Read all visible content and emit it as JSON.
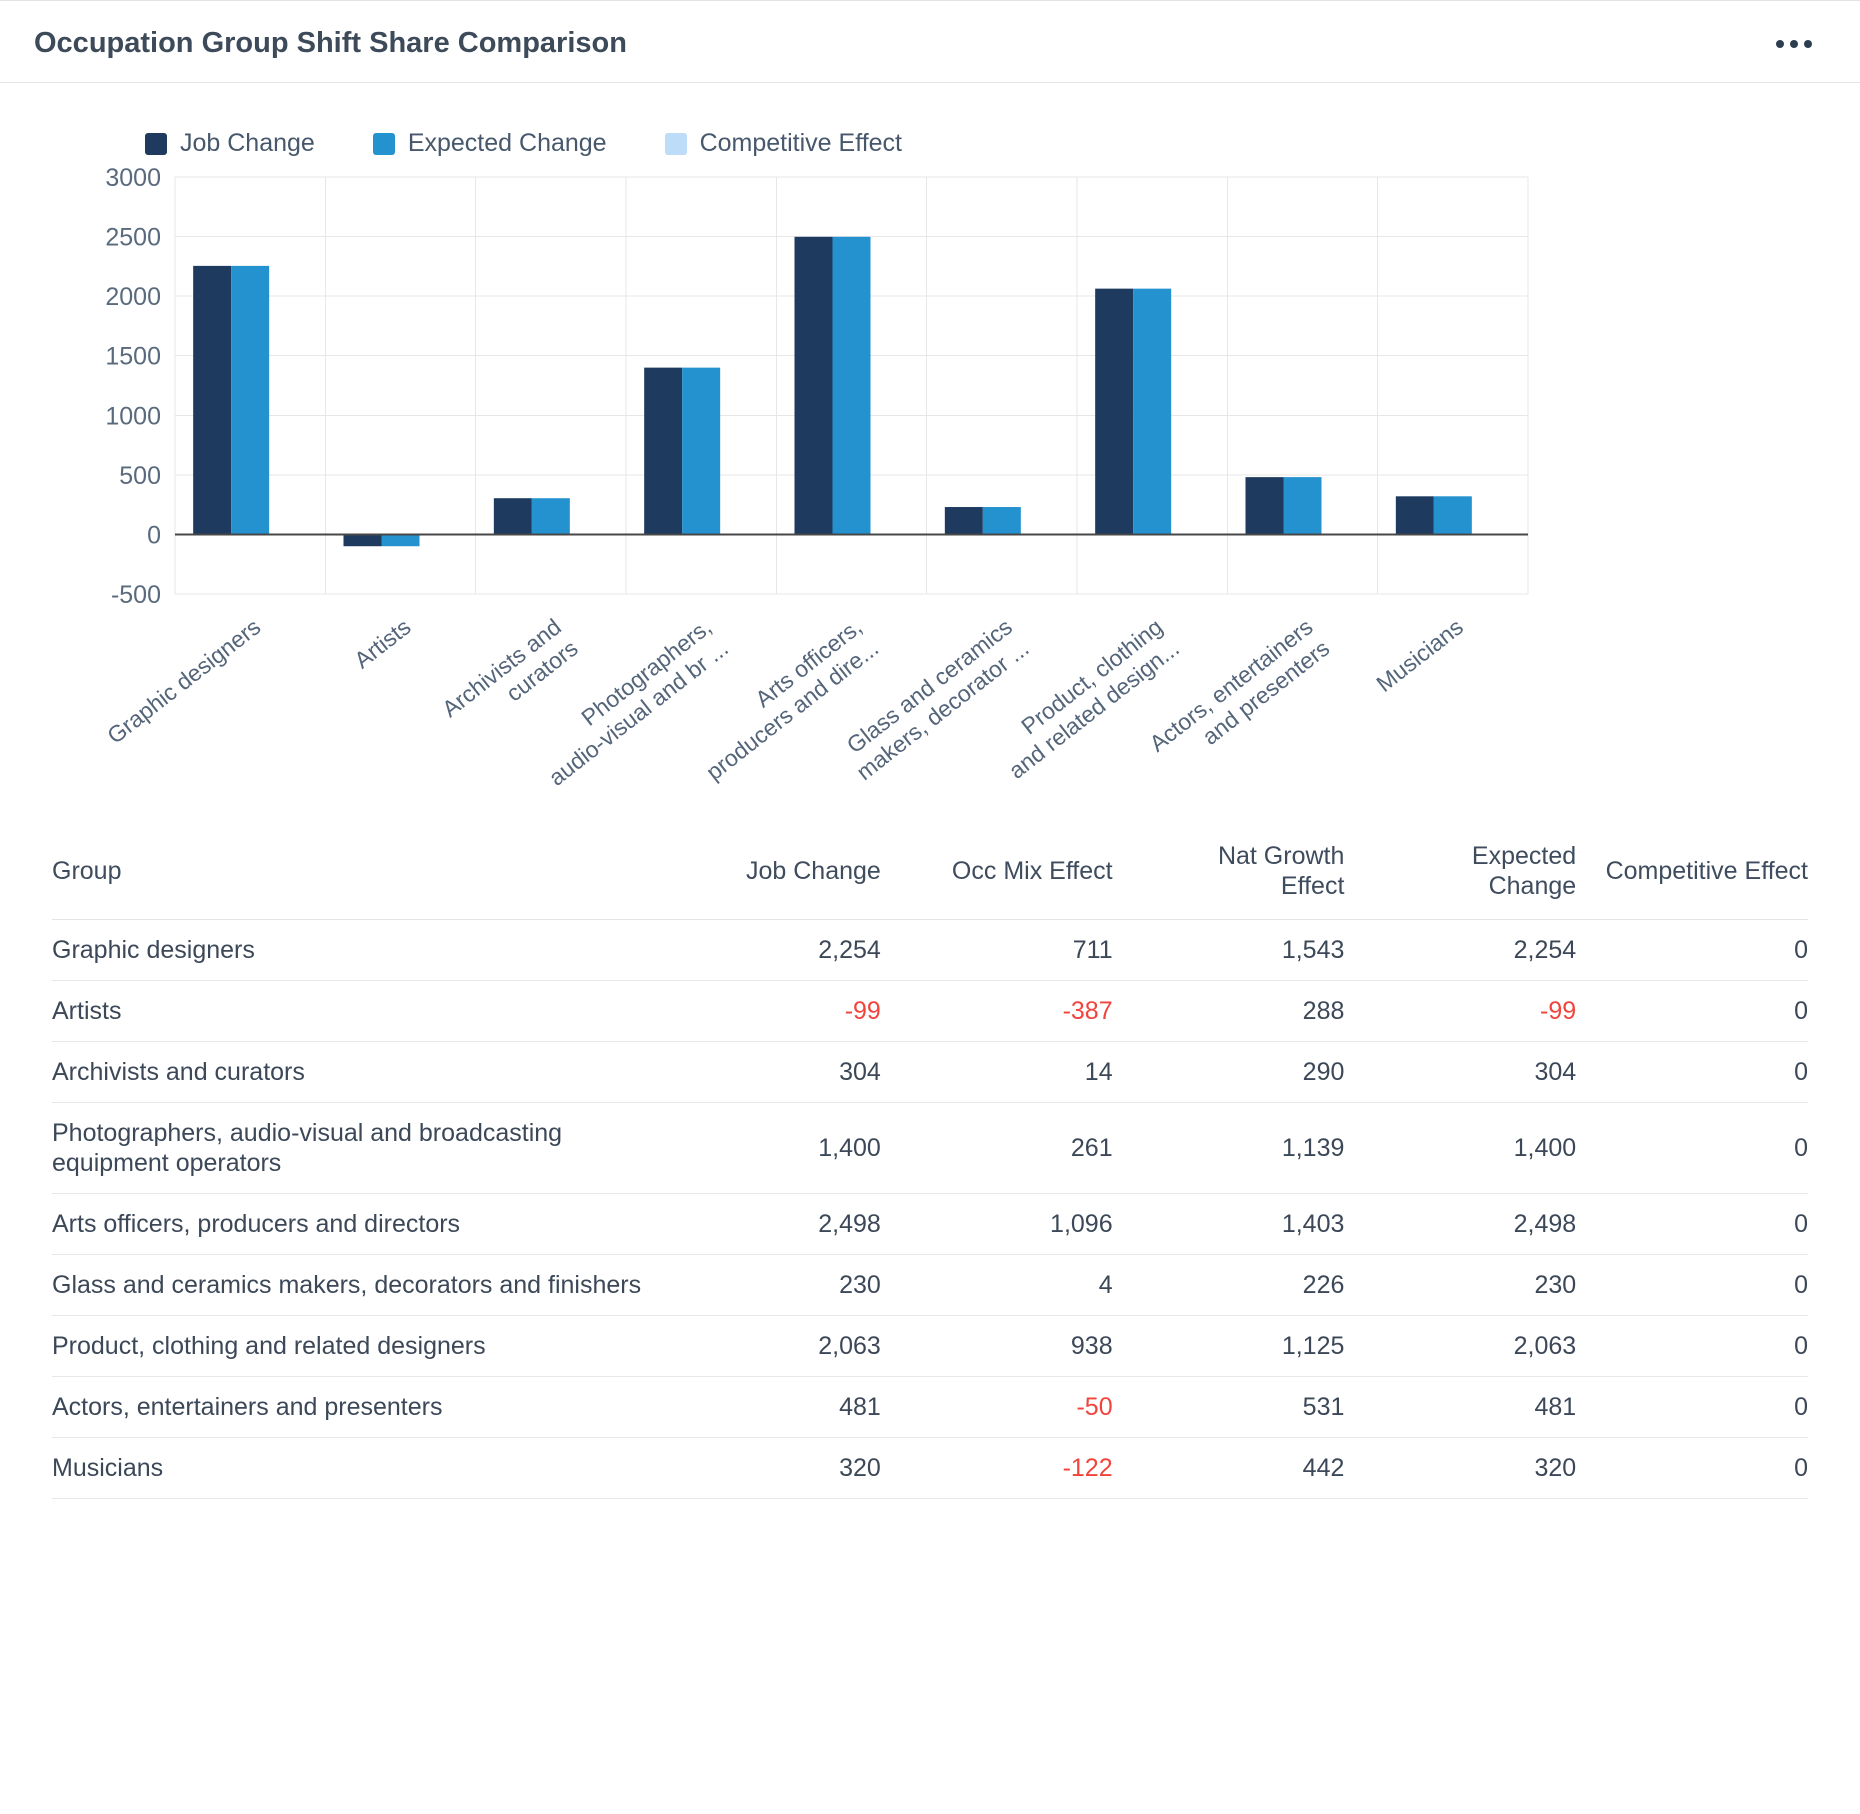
{
  "header": {
    "title": "Occupation Group Shift Share Comparison"
  },
  "chart_data": {
    "type": "bar",
    "title": "Occupation Group Shift Share Comparison",
    "categories": [
      "Graphic designers",
      "Artists",
      "Archivists and curators",
      "Photographers, audio-visual and broadcasting equipment operators",
      "Arts officers, producers and directors",
      "Glass and ceramics makers, decorators and finishers",
      "Product, clothing and related designers",
      "Actors, entertainers and presenters",
      "Musicians"
    ],
    "category_axis_labels": [
      [
        "Graphic designers"
      ],
      [
        "Artists"
      ],
      [
        "Archivists and",
        "curators"
      ],
      [
        "Photographers,",
        "audio-visual and br ..."
      ],
      [
        "Arts officers,",
        "producers and dire..."
      ],
      [
        "Glass and ceramics",
        "makers, decorator ..."
      ],
      [
        "Product, clothing",
        "and related design..."
      ],
      [
        "Actors, entertainers",
        "and presenters"
      ],
      [
        "Musicians"
      ]
    ],
    "series": [
      {
        "name": "Job Change",
        "color": "#1e3a5f",
        "values": [
          2254,
          -99,
          304,
          1400,
          2498,
          230,
          2063,
          481,
          320
        ]
      },
      {
        "name": "Expected Change",
        "color": "#2492cf",
        "values": [
          2254,
          -99,
          304,
          1400,
          2498,
          230,
          2063,
          481,
          320
        ]
      },
      {
        "name": "Competitive Effect",
        "color": "#bcdcf7",
        "values": [
          0,
          0,
          0,
          0,
          0,
          0,
          0,
          0,
          0
        ]
      }
    ],
    "ylim": [
      -500,
      3000
    ],
    "ytick_step": 500,
    "grid": true,
    "legend_position": "top"
  },
  "table": {
    "columns": [
      {
        "label": "Group",
        "align": "left"
      },
      {
        "label": "Job Change",
        "align": "right"
      },
      {
        "label": "Occ Mix Effect",
        "align": "right"
      },
      {
        "label": "Nat Growth\nEffect",
        "align": "right"
      },
      {
        "label": "Expected\nChange",
        "align": "right"
      },
      {
        "label": "Competitive Effect",
        "align": "right"
      }
    ],
    "rows": [
      {
        "group": "Graphic designers",
        "values": [
          "2,254",
          "711",
          "1,543",
          "2,254",
          "0"
        ]
      },
      {
        "group": "Artists",
        "values": [
          "-99",
          "-387",
          "288",
          "-99",
          "0"
        ]
      },
      {
        "group": "Archivists and curators",
        "values": [
          "304",
          "14",
          "290",
          "304",
          "0"
        ]
      },
      {
        "group": "Photographers, audio-visual and broadcasting equipment operators",
        "values": [
          "1,400",
          "261",
          "1,139",
          "1,400",
          "0"
        ]
      },
      {
        "group": "Arts officers, producers and directors",
        "values": [
          "2,498",
          "1,096",
          "1,403",
          "2,498",
          "0"
        ]
      },
      {
        "group": "Glass and ceramics makers, decorators and finishers",
        "values": [
          "230",
          "4",
          "226",
          "230",
          "0"
        ]
      },
      {
        "group": "Product, clothing and related designers",
        "values": [
          "2,063",
          "938",
          "1,125",
          "2,063",
          "0"
        ]
      },
      {
        "group": "Actors, entertainers and presenters",
        "values": [
          "481",
          "-50",
          "531",
          "481",
          "0"
        ]
      },
      {
        "group": "Musicians",
        "values": [
          "320",
          "-122",
          "442",
          "320",
          "0"
        ]
      }
    ]
  }
}
